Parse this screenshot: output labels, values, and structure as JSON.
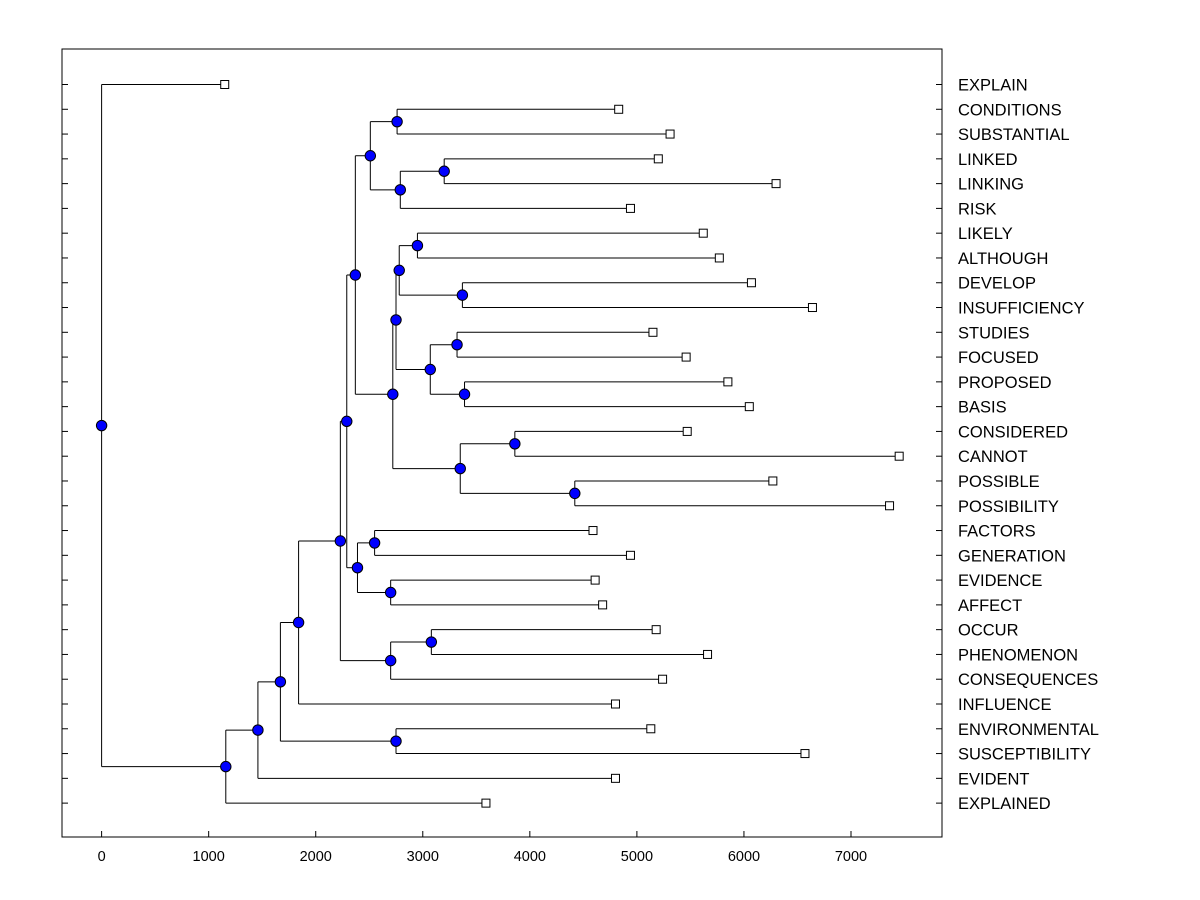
{
  "chart_data": {
    "type": "dendrogram",
    "title": "",
    "xlabel": "",
    "ylabel": "",
    "xlim": [
      -370,
      7850
    ],
    "xticks": [
      0,
      1000,
      2000,
      3000,
      4000,
      5000,
      6000,
      7000
    ],
    "node_color": "#0000ff",
    "leaves": [
      {
        "label": "EXPLAIN",
        "value": 1150
      },
      {
        "label": "CONDITIONS",
        "value": 4830
      },
      {
        "label": "SUBSTANTIAL",
        "value": 5310
      },
      {
        "label": "LINKED",
        "value": 5200
      },
      {
        "label": "LINKING",
        "value": 6300
      },
      {
        "label": "RISK",
        "value": 4940
      },
      {
        "label": "LIKELY",
        "value": 5620
      },
      {
        "label": "ALTHOUGH",
        "value": 5770
      },
      {
        "label": "DEVELOP",
        "value": 6070
      },
      {
        "label": "INSUFFICIENCY",
        "value": 6640
      },
      {
        "label": "STUDIES",
        "value": 5150
      },
      {
        "label": "FOCUSED",
        "value": 5460
      },
      {
        "label": "PROPOSED",
        "value": 5850
      },
      {
        "label": "BASIS",
        "value": 6050
      },
      {
        "label": "CONSIDERED",
        "value": 5470
      },
      {
        "label": "CANNOT",
        "value": 7450
      },
      {
        "label": "POSSIBLE",
        "value": 6270
      },
      {
        "label": "POSSIBILITY",
        "value": 7360
      },
      {
        "label": "FACTORS",
        "value": 4590
      },
      {
        "label": "GENERATION",
        "value": 4940
      },
      {
        "label": "EVIDENCE",
        "value": 4610
      },
      {
        "label": "AFFECT",
        "value": 4680
      },
      {
        "label": "OCCUR",
        "value": 5180
      },
      {
        "label": "PHENOMENON",
        "value": 5660
      },
      {
        "label": "CONSEQUENCES",
        "value": 5240
      },
      {
        "label": "INFLUENCE",
        "value": 4800
      },
      {
        "label": "ENVIRONMENTAL",
        "value": 5130
      },
      {
        "label": "SUSCEPTIBILITY",
        "value": 6570
      },
      {
        "label": "EVIDENT",
        "value": 4800
      },
      {
        "label": "EXPLAINED",
        "value": 3590
      }
    ],
    "nodes": [
      {
        "id": "n1",
        "value": 2760,
        "children": [
          "L1",
          "L2"
        ]
      },
      {
        "id": "n2",
        "value": 3200,
        "children": [
          "L3",
          "L4"
        ]
      },
      {
        "id": "n3",
        "value": 2790,
        "children": [
          "n2",
          "L5"
        ]
      },
      {
        "id": "n4",
        "value": 2510,
        "children": [
          "n1",
          "n3"
        ]
      },
      {
        "id": "n5",
        "value": 2950,
        "children": [
          "L6",
          "L7"
        ]
      },
      {
        "id": "n6",
        "value": 3370,
        "children": [
          "L8",
          "L9"
        ]
      },
      {
        "id": "n7",
        "value": 2780,
        "children": [
          "n5",
          "n6"
        ]
      },
      {
        "id": "n8",
        "value": 3320,
        "children": [
          "L10",
          "L11"
        ]
      },
      {
        "id": "n9",
        "value": 3390,
        "children": [
          "L12",
          "L13"
        ]
      },
      {
        "id": "n10",
        "value": 3070,
        "children": [
          "n8",
          "n9"
        ]
      },
      {
        "id": "n11",
        "value": 2750,
        "children": [
          "n7",
          "n10"
        ]
      },
      {
        "id": "n12",
        "value": 3860,
        "children": [
          "L14",
          "L15"
        ]
      },
      {
        "id": "n13",
        "value": 4420,
        "children": [
          "L16",
          "L17"
        ]
      },
      {
        "id": "n14",
        "value": 3350,
        "children": [
          "n12",
          "n13"
        ]
      },
      {
        "id": "n15",
        "value": 2720,
        "children": [
          "n11",
          "n14"
        ]
      },
      {
        "id": "n16",
        "value": 2370,
        "children": [
          "n4",
          "n15"
        ]
      },
      {
        "id": "n17",
        "value": 2550,
        "children": [
          "L18",
          "L19"
        ]
      },
      {
        "id": "n18",
        "value": 2700,
        "children": [
          "L20",
          "L21"
        ]
      },
      {
        "id": "n19",
        "value": 2390,
        "children": [
          "n17",
          "n18"
        ]
      },
      {
        "id": "n20",
        "value": 2290,
        "children": [
          "n16",
          "n19"
        ]
      },
      {
        "id": "n21",
        "value": 3080,
        "children": [
          "L22",
          "L23"
        ]
      },
      {
        "id": "n22",
        "value": 2700,
        "children": [
          "n21",
          "L24"
        ]
      },
      {
        "id": "n23",
        "value": 2230,
        "children": [
          "n20",
          "n22"
        ]
      },
      {
        "id": "n24",
        "value": 1840,
        "children": [
          "n23",
          "L25"
        ]
      },
      {
        "id": "n25",
        "value": 2750,
        "children": [
          "L26",
          "L27"
        ]
      },
      {
        "id": "n26",
        "value": 1670,
        "children": [
          "n24",
          "n25"
        ]
      },
      {
        "id": "n27",
        "value": 1460,
        "children": [
          "n26",
          "L28"
        ]
      },
      {
        "id": "n28",
        "value": 1160,
        "children": [
          "n27",
          "L29"
        ]
      },
      {
        "id": "n29",
        "value": 0,
        "children": [
          "L0",
          "n28"
        ]
      }
    ]
  }
}
